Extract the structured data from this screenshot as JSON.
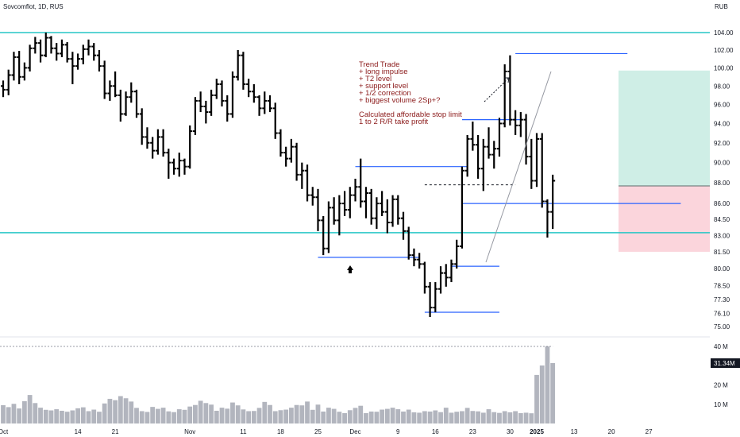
{
  "header": {
    "title": "Sovcomflot, 1D, RUS",
    "currency": "RUB"
  },
  "annotation": {
    "lines": [
      "Trend Trade",
      "+ long impulse",
      "+ T2 level",
      "+ support level",
      "+ 1/2 correction",
      "+ biggest volume 2Sp+?",
      "",
      "Calculated affordable stop limit",
      " 1 to 2 R/R take profit"
    ]
  },
  "colors": {
    "bar": "#000000",
    "cyan_level": "#26c6c6",
    "blue_level": "#2962ff",
    "volume": "#b2b5be",
    "profit_zone": "#cfeee6",
    "loss_zone": "#fbd5dc",
    "current_price_badge": "#131722"
  },
  "chart_data": {
    "type": "bar",
    "ohlc_x_range": [
      0,
      117
    ],
    "y_axis": {
      "ticks": [
        "104.00",
        "102.00",
        "100.00",
        "98.00",
        "96.00",
        "94.00",
        "92.00",
        "90.00",
        "88.00",
        "86.00",
        "84.50",
        "83.00",
        "81.50",
        "80.00",
        "78.50",
        "77.30",
        "76.10",
        "75.00"
      ],
      "scale": "log"
    },
    "volume_axis": {
      "ticks": [
        "40 M",
        "20 M",
        "10 M"
      ],
      "current_label": "31.34M",
      "max": 40
    },
    "x_axis": {
      "labels": [
        {
          "i": 0,
          "text": "Oct"
        },
        {
          "i": 14,
          "text": "14"
        },
        {
          "i": 21,
          "text": "21"
        },
        {
          "i": 35,
          "text": "Nov"
        },
        {
          "i": 45,
          "text": "11"
        },
        {
          "i": 52,
          "text": "18"
        },
        {
          "i": 59,
          "text": "25"
        },
        {
          "i": 66,
          "text": "Dec"
        },
        {
          "i": 74,
          "text": "9"
        },
        {
          "i": 81,
          "text": "16"
        },
        {
          "i": 88,
          "text": "23"
        },
        {
          "i": 95,
          "text": "30"
        },
        {
          "i": 100,
          "text": "2025"
        },
        {
          "i": 107,
          "text": "13"
        },
        {
          "i": 114,
          "text": "20"
        },
        {
          "i": 121,
          "text": "27"
        }
      ]
    },
    "bars": [
      [
        98.0,
        98.6,
        96.8,
        97.6
      ],
      [
        97.6,
        99.8,
        97.0,
        99.2
      ],
      [
        99.2,
        101.8,
        98.6,
        101.2
      ],
      [
        101.2,
        101.9,
        98.2,
        99.0
      ],
      [
        99.0,
        100.6,
        98.6,
        100.0
      ],
      [
        100.0,
        102.6,
        99.6,
        102.2
      ],
      [
        102.2,
        103.5,
        101.6,
        102.8
      ],
      [
        102.8,
        103.2,
        100.6,
        101.4
      ],
      [
        101.4,
        104.0,
        101.2,
        103.4
      ],
      [
        103.4,
        103.6,
        101.6,
        102.2
      ],
      [
        102.2,
        102.8,
        100.8,
        101.6
      ],
      [
        101.6,
        103.2,
        101.2,
        102.6
      ],
      [
        102.6,
        102.9,
        100.6,
        101.0
      ],
      [
        101.0,
        101.8,
        98.2,
        100.2
      ],
      [
        100.2,
        101.6,
        99.8,
        101.0
      ],
      [
        101.0,
        102.6,
        100.4,
        102.1
      ],
      [
        102.1,
        103.2,
        101.4,
        102.4
      ],
      [
        102.4,
        102.8,
        100.8,
        101.4
      ],
      [
        101.4,
        102.0,
        99.6,
        100.2
      ],
      [
        100.2,
        100.8,
        96.6,
        97.2
      ],
      [
        97.2,
        98.6,
        96.4,
        98.0
      ],
      [
        98.0,
        99.6,
        96.8,
        97.0
      ],
      [
        97.0,
        97.6,
        94.2,
        95.0
      ],
      [
        95.0,
        97.4,
        94.8,
        96.8
      ],
      [
        96.8,
        98.4,
        96.2,
        97.4
      ],
      [
        97.4,
        97.6,
        94.6,
        95.0
      ],
      [
        95.0,
        95.6,
        91.8,
        92.6
      ],
      [
        92.6,
        93.6,
        91.4,
        92.0
      ],
      [
        92.0,
        92.6,
        90.4,
        91.2
      ],
      [
        91.2,
        93.4,
        90.8,
        92.6
      ],
      [
        92.6,
        93.4,
        90.6,
        91.0
      ],
      [
        91.0,
        91.4,
        88.4,
        90.0
      ],
      [
        90.0,
        90.4,
        88.8,
        89.4
      ],
      [
        89.4,
        91.0,
        88.6,
        90.2
      ],
      [
        90.2,
        90.4,
        88.8,
        89.6
      ],
      [
        89.6,
        93.8,
        89.4,
        93.2
      ],
      [
        93.2,
        96.8,
        92.8,
        96.4
      ],
      [
        96.4,
        97.4,
        95.2,
        95.8
      ],
      [
        95.8,
        96.4,
        94.0,
        95.2
      ],
      [
        95.2,
        97.6,
        94.8,
        97.0
      ],
      [
        97.0,
        98.8,
        96.6,
        98.2
      ],
      [
        98.2,
        98.6,
        95.8,
        96.4
      ],
      [
        96.4,
        97.0,
        94.2,
        95.0
      ],
      [
        95.0,
        99.6,
        94.6,
        99.0
      ],
      [
        99.0,
        102.0,
        98.6,
        101.4
      ],
      [
        101.4,
        101.8,
        97.6,
        98.2
      ],
      [
        98.2,
        98.8,
        96.8,
        97.4
      ],
      [
        97.4,
        98.2,
        96.2,
        96.8
      ],
      [
        96.8,
        97.0,
        94.8,
        95.6
      ],
      [
        95.6,
        97.4,
        95.0,
        96.4
      ],
      [
        96.4,
        97.0,
        95.2,
        95.6
      ],
      [
        95.6,
        96.2,
        92.4,
        93.0
      ],
      [
        93.0,
        93.4,
        90.6,
        91.0
      ],
      [
        91.0,
        91.6,
        89.6,
        90.4
      ],
      [
        90.4,
        92.4,
        90.0,
        91.6
      ],
      [
        91.6,
        92.0,
        88.2,
        88.8
      ],
      [
        88.8,
        90.0,
        87.4,
        89.2
      ],
      [
        89.2,
        89.8,
        86.2,
        86.8
      ],
      [
        86.8,
        87.6,
        85.8,
        86.6
      ],
      [
        86.6,
        87.4,
        83.4,
        84.4
      ],
      [
        84.4,
        84.8,
        81.2,
        81.8
      ],
      [
        81.8,
        86.2,
        81.4,
        85.6
      ],
      [
        85.6,
        86.6,
        84.0,
        84.4
      ],
      [
        84.4,
        86.8,
        83.0,
        86.0
      ],
      [
        86.0,
        87.2,
        84.8,
        85.4
      ],
      [
        85.4,
        87.6,
        84.6,
        86.8
      ],
      [
        86.8,
        88.4,
        86.2,
        87.6
      ],
      [
        87.6,
        90.4,
        85.6,
        86.2
      ],
      [
        86.2,
        87.6,
        84.6,
        87.0
      ],
      [
        87.0,
        87.4,
        84.0,
        84.6
      ],
      [
        84.6,
        86.6,
        83.6,
        86.0
      ],
      [
        86.0,
        87.2,
        84.8,
        85.2
      ],
      [
        85.2,
        86.4,
        83.2,
        84.2
      ],
      [
        84.2,
        86.8,
        83.8,
        86.4
      ],
      [
        86.4,
        86.8,
        84.0,
        84.6
      ],
      [
        84.6,
        85.2,
        82.6,
        83.4
      ],
      [
        83.4,
        83.8,
        80.8,
        81.2
      ],
      [
        81.2,
        81.8,
        80.2,
        80.8
      ],
      [
        80.8,
        81.4,
        80.0,
        80.4
      ],
      [
        80.4,
        80.6,
        77.8,
        78.4
      ],
      [
        78.4,
        78.8,
        75.8,
        76.6
      ],
      [
        76.6,
        78.8,
        76.2,
        78.2
      ],
      [
        78.2,
        80.2,
        77.8,
        79.6
      ],
      [
        79.6,
        80.4,
        78.4,
        79.2
      ],
      [
        79.2,
        80.8,
        78.8,
        80.4
      ],
      [
        80.4,
        82.6,
        80.0,
        82.0
      ],
      [
        82.0,
        89.6,
        81.8,
        89.2
      ],
      [
        89.2,
        92.8,
        88.6,
        92.4
      ],
      [
        92.4,
        94.2,
        91.2,
        91.8
      ],
      [
        91.8,
        92.8,
        88.4,
        89.4
      ],
      [
        89.4,
        92.4,
        87.2,
        91.6
      ],
      [
        91.6,
        93.6,
        90.4,
        90.8
      ],
      [
        90.8,
        92.2,
        89.4,
        91.4
      ],
      [
        91.4,
        94.6,
        90.6,
        94.0
      ],
      [
        94.0,
        100.4,
        93.6,
        99.6
      ],
      [
        99.6,
        101.4,
        93.8,
        94.4
      ],
      [
        94.4,
        95.4,
        92.8,
        93.8
      ],
      [
        93.8,
        95.2,
        92.6,
        94.4
      ],
      [
        94.4,
        95.0,
        89.8,
        90.6
      ],
      [
        90.6,
        92.4,
        87.4,
        88.2
      ],
      [
        88.2,
        93.0,
        87.6,
        92.4
      ],
      [
        92.4,
        93.0,
        85.6,
        86.2
      ],
      [
        86.2,
        86.4,
        82.8,
        85.2
      ],
      [
        85.2,
        88.8,
        83.6,
        88.2
      ]
    ],
    "volume": [
      9.5,
      8.5,
      10.2,
      7.8,
      11.6,
      14.8,
      10.6,
      8.2,
      7.1,
      6.8,
      7.4,
      6.6,
      6.1,
      6.8,
      7.9,
      8.4,
      6.4,
      7.2,
      6.1,
      10.4,
      12.8,
      12.1,
      14.2,
      13.1,
      11.4,
      8.1,
      6.4,
      6.0,
      8.6,
      7.6,
      8.2,
      6.3,
      5.9,
      7.4,
      7.1,
      8.8,
      9.6,
      11.8,
      10.6,
      9.8,
      6.6,
      8.2,
      7.7,
      10.9,
      9.4,
      7.3,
      6.4,
      6.5,
      8.1,
      11.2,
      9.6,
      6.4,
      6.9,
      7.2,
      8.2,
      9.6,
      9.4,
      11.4,
      7.1,
      9.8,
      6.2,
      8.2,
      7.6,
      6.1,
      5.4,
      6.9,
      8.1,
      9.2,
      5.4,
      6.2,
      6.1,
      7.2,
      7.6,
      8.2,
      7.4,
      6.2,
      7.2,
      5.8,
      5.6,
      6.4,
      6.2,
      6.8,
      5.9,
      8.2,
      5.6,
      6.1,
      6.4,
      8.1,
      6.5,
      6.3,
      5.6,
      7.4,
      5.9,
      5.5,
      6.4,
      5.8,
      6.4,
      5.4,
      5.6,
      5.3,
      25.2,
      30.1,
      40.0,
      31.34
    ],
    "horizontal_levels": [
      {
        "price": 104.0,
        "style": "cyan",
        "extend": "full"
      },
      {
        "price": 83.25,
        "style": "cyan",
        "extend": "full"
      }
    ],
    "blue_segments": [
      {
        "price": 101.6,
        "from_i": 96,
        "to_i": 117
      },
      {
        "price": 94.4,
        "from_i": 86,
        "to_i": 97
      },
      {
        "price": 89.6,
        "from_i": 66,
        "to_i": 87
      },
      {
        "price": 86.0,
        "from_i": 86,
        "to_i": 127
      },
      {
        "price": 81.0,
        "from_i": 59,
        "to_i": 78
      },
      {
        "price": 80.2,
        "from_i": 84,
        "to_i": 93
      },
      {
        "price": 76.2,
        "from_i": 79,
        "to_i": 93
      }
    ],
    "dashed_segment": {
      "price": 87.8,
      "from_i": 79,
      "to_i": 96
    },
    "position": {
      "from_i": 106,
      "to_i": 127,
      "entry": 87.7,
      "target": 99.7,
      "stop": 81.5
    }
  }
}
